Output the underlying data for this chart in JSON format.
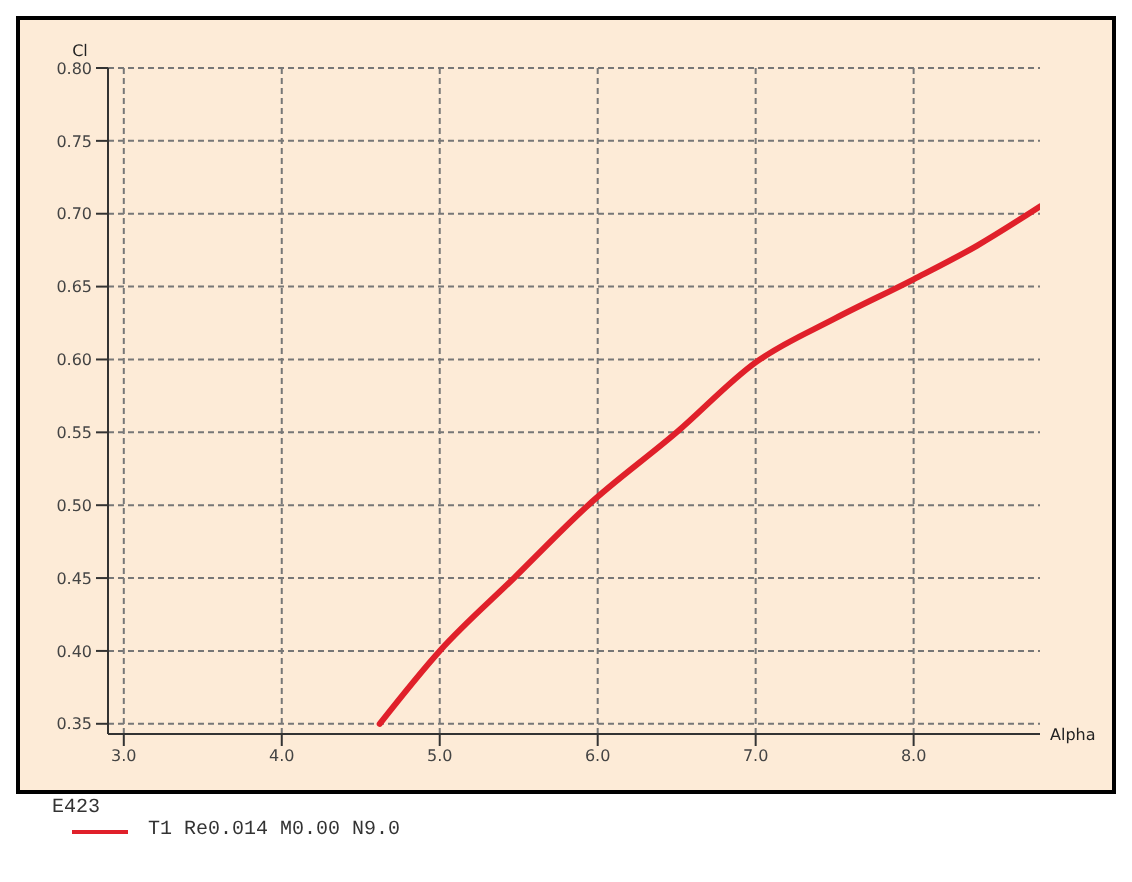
{
  "chart_data": {
    "type": "line",
    "xlabel": "Alpha",
    "ylabel": "Cl",
    "legend_title": "E423",
    "x": [
      4.62,
      5.0,
      5.47,
      5.94,
      6.5,
      7.0,
      7.5,
      8.0,
      8.4,
      8.8
    ],
    "series": [
      {
        "name": "T1 Re0.014 M0.00 N9.0",
        "color": "#e0202a",
        "values": [
          0.35,
          0.4,
          0.45,
          0.5,
          0.55,
          0.598,
          0.628,
          0.655,
          0.678,
          0.705
        ]
      }
    ],
    "xlim": [
      2.9,
      8.8
    ],
    "xticks": [
      {
        "value": 3,
        "label": "3.0"
      },
      {
        "value": 4,
        "label": "4.0"
      },
      {
        "value": 5,
        "label": "5.0"
      },
      {
        "value": 6,
        "label": "6.0"
      },
      {
        "value": 7,
        "label": "7.0"
      },
      {
        "value": 8,
        "label": "8.0"
      }
    ],
    "ylim": [
      0.343,
      0.8
    ],
    "yticks": [
      {
        "value": 0.35,
        "label": "0.35"
      },
      {
        "value": 0.4,
        "label": "0.40"
      },
      {
        "value": 0.45,
        "label": "0.45"
      },
      {
        "value": 0.5,
        "label": "0.50"
      },
      {
        "value": 0.55,
        "label": "0.55"
      },
      {
        "value": 0.6,
        "label": "0.60"
      },
      {
        "value": 0.65,
        "label": "0.65"
      },
      {
        "value": 0.7,
        "label": "0.70"
      },
      {
        "value": 0.75,
        "label": "0.75"
      },
      {
        "value": 0.8,
        "label": "0.80"
      }
    ],
    "grid": true,
    "legend": "bottom",
    "marker": "none",
    "line_style": "solid"
  }
}
